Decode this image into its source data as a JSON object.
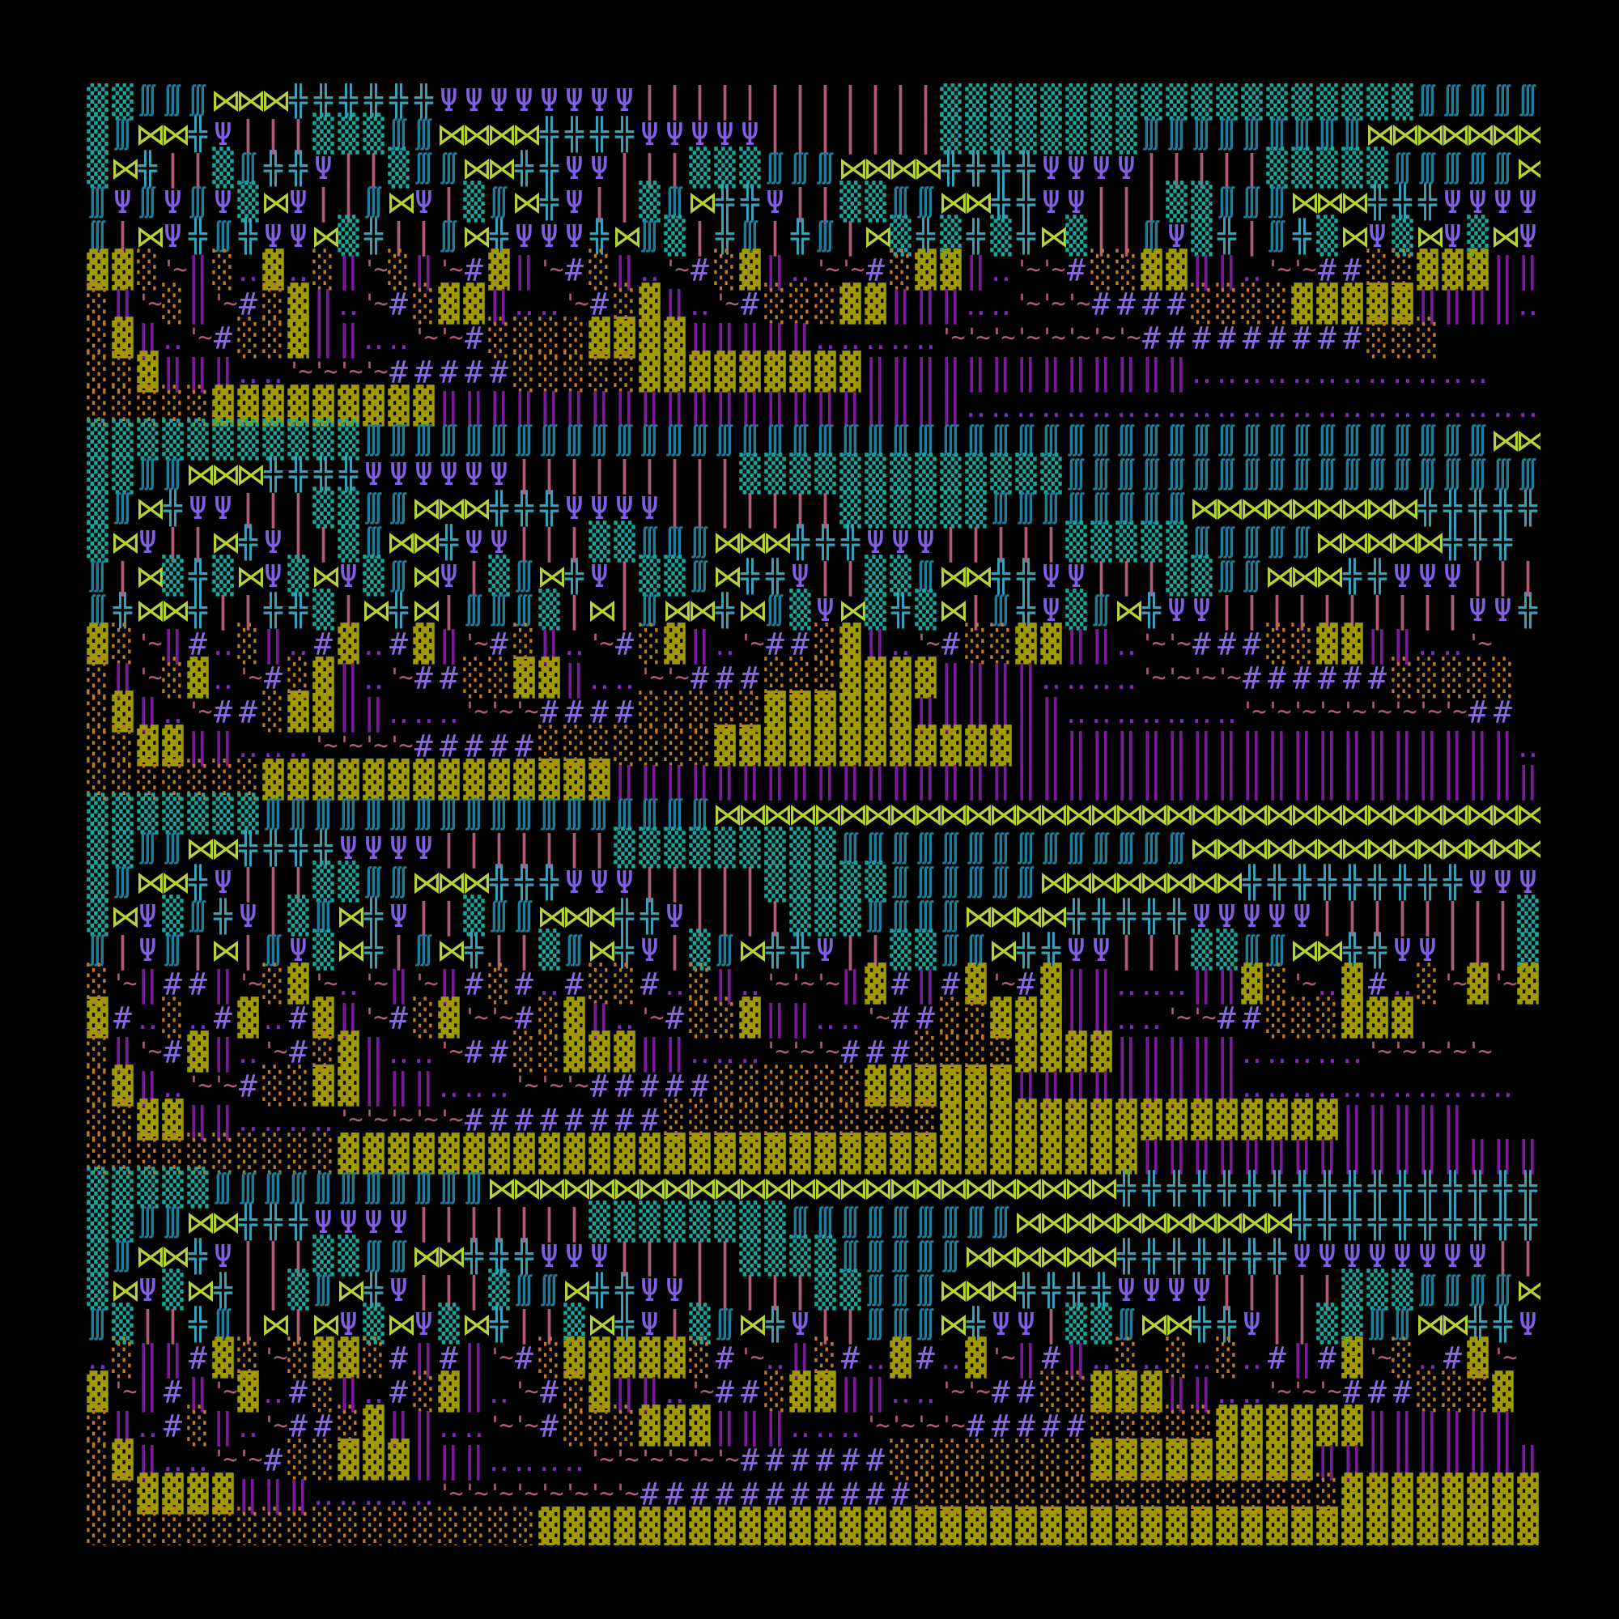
{
  "palette": {
    "▒": "#1aa7a0",
    "∭": "#1e7c98",
    "⋈": "#b5d334",
    "╬": "#3aa0b8",
    "Ψ": "#8060e0",
    "|": "#b05a78",
    "▓": "#a09a00",
    "░": "#c07a20",
    "‖": "#7a1a9a",
    "~": "#b06070",
    "‥": "#7a30b0",
    "#": "#8a6ae0"
  },
  "background": "#000000",
  "rows": [
    "▒▒∭∭∭⋈⋈⋈╬╬╬╬╬╬ΨΨΨΨΨΨΨΨ||||||||||||▒▒▒▒▒▒▒▒▒▒▒▒▒▒▒▒▒▒▒∭∭∭∭∭",
    "▒∭⋈⋈╬Ψ|||▒▒▒∭∭⋈⋈⋈⋈╬╬╬╬ΨΨΨΨΨ|||||||▒▒▒▒▒▒▒▒∭∭∭∭∭∭∭∭∭⋈⋈⋈⋈⋈⋈⋈",
    "▒⋈╬||▒∭╬╬Ψ||▒∭∭⋈⋈╬╬ΨΨ|||▒▒▒∭∭∭⋈⋈⋈⋈╬╬╬╬ΨΨΨΨ|||||▒▒▒▒▒∭∭∭∭∭⋈",
    "∭Ψ∭Ψ∭Ψ▒⋈Ψ||∭⋈Ψ|▒∭⋈╬Ψ||▒∭⋈╬╬Ψ||▒▒∭∭⋈⋈╬╬ΨΨ|||▒▒∭∭∭⋈⋈⋈╬╬╬ΨΨΨΨ",
    "∭|⋈Ψ╬∭╬ΨΨ⋈▒╬||∭⋈╬ΨΨΨ╬⋈∭▒|╬∭|╬∭|⋈▒╬▒╬▒╬⋈▒||∭Ψ▒╬|∭╬▒⋈Ψ▒⋈Ψ▒⋈Ψ",
    "▓▓░~‖░‥▓‥░‖~░‖~#▓‖~#░‖‥~#░▓‖‥~~#░▓▓‖‥~~#░░▓▓‖‖‥~~##░░▓▓▓‖‖‥",
    "░‖~░‖~#░▓‖‥~#░▓▓‖‥‥~#░▓‖‥~#░░░▓▓‖‖‖‥‥~~~####░░░░▓▓▓▓▓‖‖‖‖‥‥‥",
    "░▓‖‥~#░░▓‖‖‥‥~~#░░░░▓▓▓▓‖‖‖‖‖‥‥‥‥‥~~~~~~~~#########░░░",
    "░░▓‖‖‖‥‥~~~~#####░░░░░▓▓▓▓▓▓▓▓▓‖‖‖‖‖‖‖‖‖‖‖‖‖‥‥‥‥‥‥‥‥‥‥‥‥",
    "░░░░░▓▓▓▓▓▓▓▓▓‖‖‖‖‖‖‖‖‖‖‖‖‖‖‖‖‖‖‖‖‖‥‥‥‥‥‥‥‥‥‥‥‥‥‥‥‥‥‥‥‥‥‥‥",
    "▒▒▒▒▒▒▒▒▒▒▒∭∭∭∭∭∭∭∭∭∭∭∭∭∭∭∭∭∭∭∭∭∭∭∭∭∭∭∭∭∭∭∭∭∭∭∭∭∭∭∭∭∭∭∭∭⋈⋈",
    "▒▒∭∭⋈⋈⋈╬╬╬╬ΨΨΨΨΨΨ|||||||||▒▒▒▒▒▒▒▒▒▒▒▒▒∭∭∭∭∭∭∭∭∭∭∭∭∭∭∭∭∭∭∭",
    "▒∭⋈╬ΨΨ|||▒▒∭∭⋈⋈⋈╬╬╬ΨΨΨΨ|||||||▒▒▒▒▒▒∭∭∭∭∭∭∭∭⋈⋈⋈⋈⋈⋈⋈⋈⋈╬╬╬╬╬",
    "▒⋈Ψ||⋈╬Ψ||▒∭⋈⋈╬ΨΨ|||▒▒∭∭∭⋈⋈⋈╬╬╬ΨΨΨ|||||▒▒▒▒▒∭∭∭∭∭⋈⋈⋈⋈⋈╬╬╬",
    "∭|⋈▒╬▒⋈Ψ▒⋈Ψ▒∭⋈Ψ|▒∭⋈╬Ψ|▒▒∭⋈╬╬Ψ||▒▒∭⋈⋈╬╬ΨΨ|||▒▒∭∭⋈⋈⋈╬╬ΨΨΨ|||",
    "∭╬⋈⋈╬||╬╬▒|⋈╬⋈|∭∭∭▒|⋈|∭⋈⋈╬⋈∭▒Ψ⋈▒╬▒⋈|∭╬Ψ▒∭⋈╬ΨΨ||||||||||ΨΨ╬╬⋈∭▒|Ψ⋈",
    "▓░~‖#‥░‖‥#▓‥#▓‖~#░‖‥~#░▓‖‥~##░▓‖‥~#░░▓▓‖‖‥~~###░░▓▓‖‖‥‥~",
    "░‖~░▓‥~#░▓‖‥~##░░▓▓‖‥‥~~###░░░▓▓▓▓‖‖‖‖‥‥‥‥~~~~######░░░░░",
    "░▓‖‥~##░▓▓‖‖‥‥‥~~~####░░░░░▓▓▓▓▓▓‖‖‖‖‖‖‥‥‥‥‥‥‥~~~~~~~~~##",
    "░░▓▓‖‖‥‥‥~~~~#####░░░░░░░▓▓▓▓▓▓▓▓▓▓▓▓‖‖‖‖‖‖‖‖‖‖‖‖‖‖‖‖‖‖‖‖‥",
    "░░░░░░░▓▓▓▓▓▓▓▓▓▓▓▓▓▓‖‖‖‖‖‖‖‖‖‖‖‖‖‖‖‖‖‖‖‖‖‖‖‖‖‖‖‖‖‖‖‖‖‖‖‖‖",
    "▒▒▒▒▒▒▒∭∭∭∭∭∭∭∭∭∭∭∭∭∭∭∭∭∭⋈⋈⋈⋈⋈⋈⋈⋈⋈⋈⋈⋈⋈⋈⋈⋈⋈⋈⋈⋈⋈⋈⋈⋈⋈⋈⋈⋈⋈⋈⋈⋈⋈",
    "▒▒∭∭⋈⋈╬╬╬╬ΨΨΨΨ|||||||▒▒▒▒▒▒▒▒▒∭∭∭∭∭∭∭∭∭∭∭∭∭∭⋈⋈⋈⋈⋈⋈⋈⋈⋈⋈⋈⋈⋈⋈",
    "▒∭⋈⋈╬Ψ|||▒▒∭∭⋈⋈⋈╬╬╬ΨΨΨ|||||▒▒▒▒▒∭∭∭∭∭∭⋈⋈⋈⋈⋈⋈⋈⋈╬╬╬╬╬╬╬╬╬ΨΨΨΨΨΨΨ",
    "▒⋈Ψ▒∭╬Ψ|▒∭⋈╬Ψ||▒∭∭⋈⋈⋈╬╬Ψ||||▒▒▒∭∭∭∭⋈⋈⋈⋈╬╬╬╬╬ΨΨΨΨΨ||||||||▒",
    "∭|Ψ∭|⋈|∭Ψ▒⋈╬|∭⋈╬||▒∭⋈╬Ψ|▒∭⋈╬╬Ψ||▒▒∭∭⋈╬╬ΨΨ|||▒▒∭∭⋈⋈╬╬ΨΨ|||▒",
    "░~‖##‖~░▓~‥~‖~‖#░#‥#░░#‥░‖‥~~~‖▓#‖#▓~#▓‖‖‥‥‥‖‖▓░~‥▓#‥░~▓~▓",
    "▓#‥░‥#▓‥#▓‖~#░▓~~#░▓‖‥~#░░▓‖‖‥‥~##░░▓▓▓‖‖‥‥~~##░░░▓▓▓",
    "░‖~#▓‖‥~#░▓‖‥‥~##░░▓▓▓‖‖‥‥‥~~~###░░░░▓▓▓▓‖‖‖‖‖‥‥‥‥‥~~~~~",
    "░▓‖‥~~#░░▓▓‖‖‖‥‥‥~~~#####░░░░░░▓▓▓▓▓▓‖‖‖‖‖‖‖‖‖‥‥‥‥‥‥‥‥‥‥‥",
    "░░▓▓‖‖‥‥‥‥~~~~~########░░░░░░░░░░░▓▓▓▓▓▓▓▓▓▓▓▓▓▓▓▓‖‖‖‖‖",
    "░░░░░░░░░░▓▓▓▓▓▓▓▓▓▓▓▓▓▓▓▓▓▓▓▓▓▓▓▓▓▓▓▓▓▓▓▓‖‖‖‖‖‖‖‖‖‖‖‖‖‖‖‖",
    "▒▒▒▒▒∭∭∭∭∭∭∭∭∭∭∭⋈⋈⋈⋈⋈⋈⋈⋈⋈⋈⋈⋈⋈⋈⋈⋈⋈⋈⋈⋈⋈⋈⋈⋈⋈╬╬╬╬╬╬╬╬╬╬╬╬╬╬╬╬╬",
    "▒▒∭∭⋈⋈╬╬╬ΨΨΨΨ|||||||▒▒▒▒▒▒▒▒∭∭∭∭∭∭∭∭∭⋈⋈⋈⋈⋈⋈⋈⋈⋈⋈⋈╬╬╬╬╬╬╬╬╬╬",
    "▒∭⋈⋈╬Ψ|||▒▒∭∭⋈⋈╬╬╬ΨΨΨ|||||▒▒▒▒∭∭∭∭∭⋈⋈⋈⋈⋈⋈╬╬╬╬╬╬╬ΨΨΨΨΨΨΨΨ||||",
    "▒⋈Ψ▒⋈╬||▒∭⋈╬Ψ|||▒∭∭⋈╬╬ΨΨ|||||▒▒∭∭∭⋈⋈⋈╬╬╬╬ΨΨΨΨ|||||▒▒▒∭∭∭∭⋈⋈⋈",
    "∭▒||╬∭|⋈|⋈Ψ▒⋈Ψ▒⋈╬||▒⋈╬Ψ|▒∭⋈╬Ψ||∭∭∭⋈╬ΨΨ|▒▒∭⋈⋈╬╬Ψ||▒▒∭∭⋈⋈╬╬ΨΨ|",
    "‥░‖‖#▓░~░▓▓░#‖#‖~#░▓▓▓▓▓░#~‥‖░#‥▓#‥▓~‖#‖‥░‥░‥░‥#‖#▓~░‥#▓~",
    "▓~‖#‖~▓‥#░‖‥#░▓‖‥~#░▓‖‖‥~##░▓▓‖‖‥‥~~##░░▓▓▓‖‖‥‥~~~###░░░▓",
    "░‖‥#░‖‥~##░▓‖‖‥‥~~#░░░▓▓▓‖‖‖‥‥‥~~~~#####░░░░░▓▓▓▓▓▓‖‖‖‖‖‖",
    "░▓‖‥‥~~#░░▓▓▓‖‖‖‥‥‥‥~~~~~~######░░░░░░░░▓▓▓▓▓▓▓▓▓‖‖‖‖‖‖‖‖‖",
    "░░▓▓▓▓‖‖‖‥‥‥‥‥~~~~~~~~###########░░░░░░░░░░░░░░░░░▓▓▓▓▓▓▓▓▓▓",
    "░░░░░░░░░░░░░░░░░░▓▓▓▓▓▓▓▓▓▓▓▓▓▓▓▓▓▓▓▓▓▓▓▓▓▓▓▓▓▓▓▓▓▓▓▓▓▓▓▓"
  ]
}
